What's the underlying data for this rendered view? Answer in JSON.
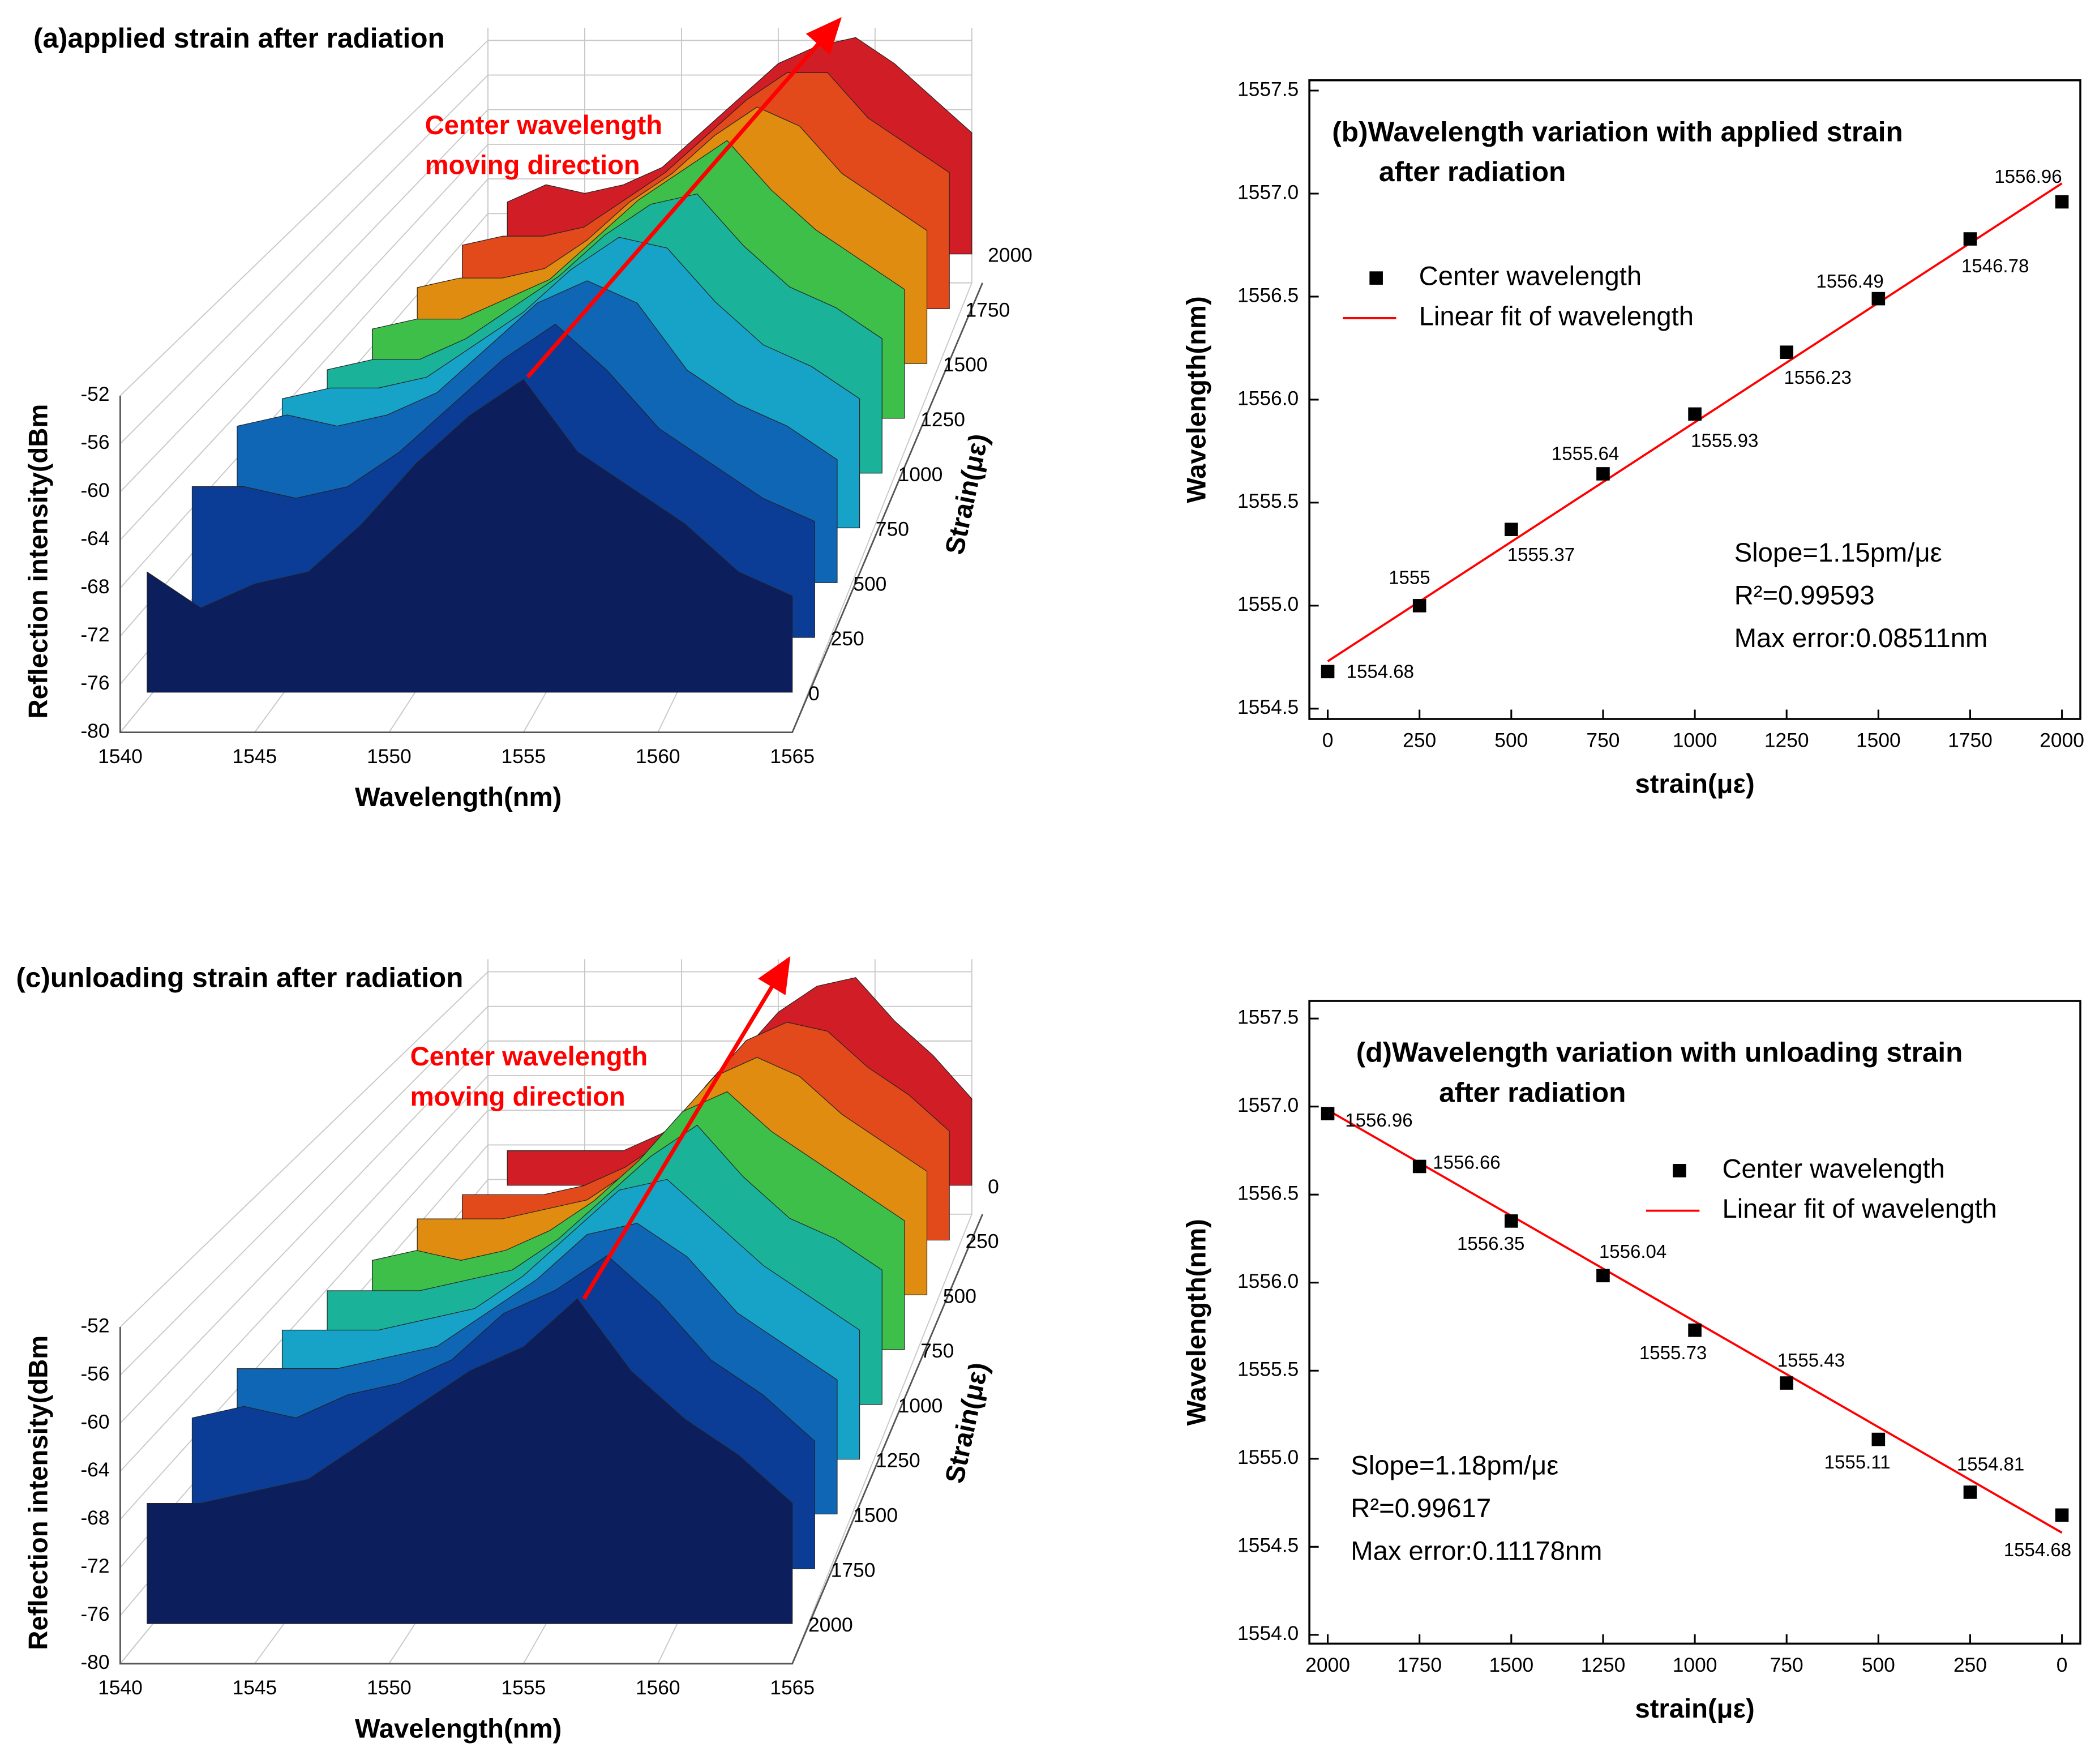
{
  "chart_data": [
    {
      "type": "waterfall3d",
      "title": "(a)applied strain after radiation",
      "xlabel": "Wavelength(nm)",
      "ylabel": "Reflection intensity(dBm",
      "zlabel": "Strain(με)",
      "annotations": [
        "Center wavelength",
        "moving direction"
      ],
      "x": [
        1541,
        1543,
        1545,
        1547,
        1549,
        1551,
        1553,
        1555,
        1557,
        1559,
        1561,
        1563,
        1565
      ],
      "xlim": [
        1540,
        1565
      ],
      "xticks": [
        1540,
        1545,
        1550,
        1555,
        1560,
        1565
      ],
      "ylim": [
        -80,
        -52
      ],
      "yticks": [
        -52,
        -56,
        -60,
        -64,
        -68,
        -72,
        -76,
        -80
      ],
      "zticks": [
        0,
        250,
        500,
        750,
        1000,
        1250,
        1500,
        1750,
        2000
      ],
      "series": [
        {
          "color": "#0c1f5c",
          "values": [
            -70,
            -73,
            -71,
            -70,
            -66,
            -61,
            -57,
            -54,
            -60,
            -63,
            -66,
            -70,
            -72
          ]
        },
        {
          "color": "#0b3d96",
          "values": [
            -67,
            -67,
            -68,
            -67,
            -64,
            -60,
            -56,
            -53,
            -57,
            -62,
            -65,
            -68,
            -70
          ]
        },
        {
          "color": "#0f66b5",
          "values": [
            -66,
            -65,
            -66,
            -65,
            -63,
            -59,
            -55,
            -53,
            -55,
            -61,
            -64,
            -66,
            -69
          ]
        },
        {
          "color": "#17a3c7",
          "values": [
            -68,
            -67,
            -67,
            -66,
            -63,
            -60,
            -56,
            -53,
            -54,
            -59,
            -63,
            -65,
            -68
          ]
        },
        {
          "color": "#1ab39a",
          "values": [
            -70,
            -69,
            -69,
            -67,
            -64,
            -61,
            -57,
            -54,
            -53,
            -58,
            -62,
            -64,
            -67
          ]
        },
        {
          "color": "#3dbf4a",
          "values": [
            -71,
            -70,
            -70,
            -68,
            -66,
            -62,
            -58,
            -55,
            -52,
            -57,
            -61,
            -64,
            -67
          ]
        },
        {
          "color": "#e08c10",
          "values": [
            -72,
            -71,
            -71,
            -70,
            -67,
            -63,
            -60,
            -56,
            -53,
            -55,
            -60,
            -63,
            -66
          ]
        },
        {
          "color": "#e2491b",
          "values": [
            -73,
            -72,
            -72,
            -71,
            -68,
            -65,
            -61,
            -57,
            -54,
            -54,
            -59,
            -62,
            -65
          ]
        },
        {
          "color": "#d01d26",
          "values": [
            -74,
            -72,
            -73,
            -72,
            -70,
            -66,
            -62,
            -58,
            -56,
            -55,
            -58,
            -62,
            -66
          ]
        }
      ]
    },
    {
      "type": "scatter",
      "title": [
        "(b)Wavelength variation with applied strain",
        "after radiation"
      ],
      "xlabel": "strain(με)",
      "ylabel": "Wavelength(nm)",
      "legend": "upper left",
      "x": [
        0,
        250,
        500,
        750,
        1000,
        1250,
        1500,
        1750,
        2000
      ],
      "xlim": [
        -50,
        2050
      ],
      "xticks": [
        0,
        250,
        500,
        750,
        1000,
        1250,
        1500,
        1750,
        2000
      ],
      "ylim": [
        1554.45,
        1557.55
      ],
      "yticks": [
        1554.5,
        {
          "value": 1555,
          "label": "1555.0"
        },
        1555.5,
        {
          "value": 1556,
          "label": "1556.0"
        },
        1556.5,
        {
          "value": 1557,
          "label": "1557.0"
        },
        1557.5
      ],
      "series": [
        {
          "name": "Center wavelength",
          "color": "#000000",
          "values": [
            1554.68,
            1555,
            1555.37,
            1555.64,
            1555.93,
            1556.23,
            1556.49,
            1556.78,
            1556.96
          ],
          "value_labels": [
            "1554.68",
            "1555",
            "1555.37",
            "1555.64",
            "1555.93",
            "1556.23",
            "1556.49",
            null,
            "1556.96"
          ]
        },
        {
          "name": "Linear fit of wavelength",
          "color": "#ff0000",
          "x": [
            0,
            2000
          ],
          "values": [
            1554.73,
            1557.05
          ]
        }
      ],
      "annotations": [
        "1546.78"
      ],
      "stats": [
        "Slope=1.15pm/με",
        "R²=0.99593",
        "Max error:0.08511nm"
      ]
    },
    {
      "type": "waterfall3d",
      "title": "(c)unloading strain after radiation",
      "xlabel": "Wavelength(nm)",
      "ylabel": "Reflection intensity(dBm",
      "zlabel": "Strain(με)",
      "annotations": [
        "Center wavelength",
        "moving direction"
      ],
      "x": [
        1541,
        1543,
        1545,
        1547,
        1549,
        1551,
        1553,
        1555,
        1557,
        1559,
        1561,
        1563,
        1565
      ],
      "xlim": [
        1540,
        1565
      ],
      "xticks": [
        1540,
        1545,
        1550,
        1555,
        1560,
        1565
      ],
      "ylim": [
        -80,
        -52
      ],
      "yticks": [
        -52,
        -56,
        -60,
        -64,
        -68,
        -72,
        -76,
        -80
      ],
      "zticks": [
        2000,
        1750,
        1500,
        1250,
        1000,
        750,
        500,
        250,
        0
      ],
      "series": [
        {
          "color": "#0c1f5c",
          "values": [
            -70,
            -70,
            -69,
            -68,
            -65,
            -62,
            -59,
            -57,
            -53,
            -59,
            -63,
            -66,
            -70
          ]
        },
        {
          "color": "#0b3d96",
          "values": [
            -67,
            -66,
            -67,
            -65,
            -64,
            -62,
            -58,
            -56,
            -53,
            -57,
            -62,
            -65,
            -69
          ]
        },
        {
          "color": "#0f66b5",
          "values": [
            -67,
            -67,
            -67,
            -66,
            -65,
            -62,
            -59,
            -55,
            -54,
            -57,
            -62,
            -65,
            -68
          ]
        },
        {
          "color": "#17a3c7",
          "values": [
            -68,
            -68,
            -68,
            -67,
            -66,
            -63,
            -59,
            -55,
            -54,
            -58,
            -62,
            -65,
            -68
          ]
        },
        {
          "color": "#1ab39a",
          "values": [
            -69,
            -69,
            -69,
            -68,
            -67,
            -64,
            -60,
            -56,
            -53,
            -58,
            -62,
            -64,
            -67
          ]
        },
        {
          "color": "#3dbf4a",
          "values": [
            -71,
            -70,
            -71,
            -70,
            -68,
            -65,
            -61,
            -56,
            -54,
            -58,
            -61,
            -64,
            -67
          ]
        },
        {
          "color": "#e08c10",
          "values": [
            -72,
            -72,
            -72,
            -71,
            -70,
            -67,
            -62,
            -57,
            -55,
            -57,
            -61,
            -64,
            -67
          ]
        },
        {
          "color": "#e2491b",
          "values": [
            -75,
            -75,
            -75,
            -74,
            -72,
            -69,
            -63,
            -58,
            -56,
            -57,
            -61,
            -64,
            -68
          ]
        },
        {
          "color": "#d01d26",
          "values": [
            -76,
            -76,
            -76,
            -76,
            -74,
            -71,
            -65,
            -60,
            -57,
            -56,
            -61,
            -65,
            -70
          ]
        }
      ]
    },
    {
      "type": "scatter",
      "title": [
        "(d)Wavelength variation with unloading strain",
        "after radiation"
      ],
      "xlabel": "strain(με)",
      "ylabel": "Wavelength(nm)",
      "legend": "upper right",
      "x": [
        2000,
        1750,
        1500,
        1250,
        1000,
        750,
        500,
        250,
        0
      ],
      "xlim": [
        2050,
        -50
      ],
      "xticks": [
        2000,
        1750,
        1500,
        1250,
        1000,
        750,
        500,
        250,
        0
      ],
      "ylim": [
        1553.95,
        1557.6
      ],
      "yticks": [
        {
          "value": 1554,
          "label": "1554.0"
        },
        1554.5,
        {
          "value": 1555,
          "label": "1555.0"
        },
        1555.5,
        {
          "value": 1556,
          "label": "1556.0"
        },
        1556.5,
        {
          "value": 1557,
          "label": "1557.0"
        },
        1557.5
      ],
      "series": [
        {
          "name": "Center wavelength",
          "color": "#000000",
          "values": [
            1556.96,
            1556.66,
            1556.35,
            1556.04,
            1555.73,
            1555.43,
            1555.11,
            1554.81,
            1554.68
          ],
          "value_labels": [
            "1556.96",
            "1556.66",
            "1556.35",
            "1556.04",
            "1555.73",
            "1555.43",
            "1555.11",
            "1554.81",
            "1554.68"
          ]
        },
        {
          "name": "Linear fit of wavelength",
          "color": "#ff0000",
          "x": [
            2000,
            0
          ],
          "values": [
            1556.98,
            1554.58
          ]
        }
      ],
      "annotations": [],
      "stats": [
        "Slope=1.18pm/με",
        "R²=0.99617",
        "Max error:0.11178nm"
      ]
    }
  ]
}
